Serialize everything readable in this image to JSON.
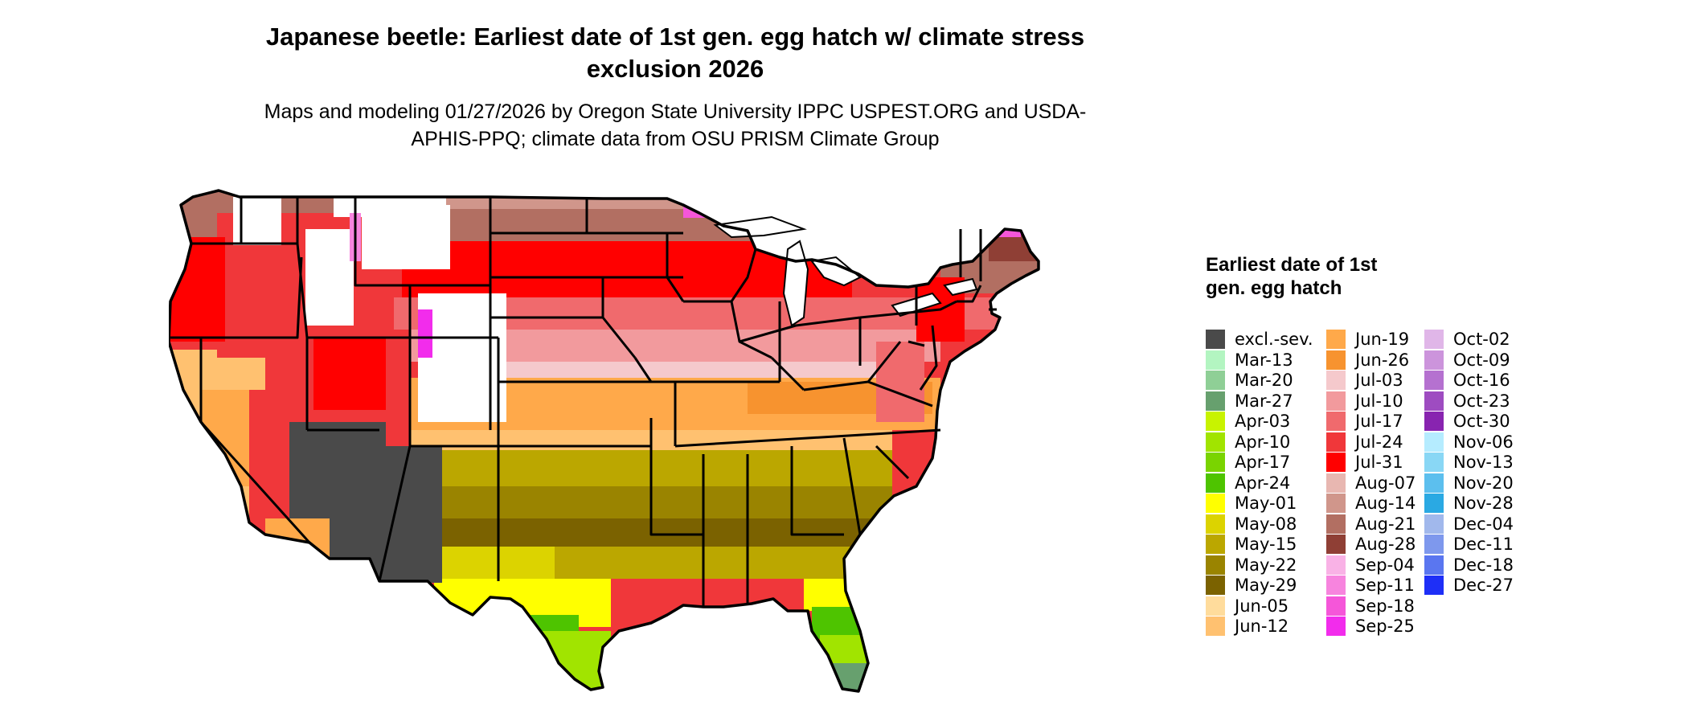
{
  "map": {
    "title": "Japanese beetle: Earliest date of 1st gen. egg hatch w/ climate stress exclusion 2026",
    "subtitle": "Maps and modeling 01/27/2026 by Oregon State University IPPC USPEST.ORG and USDA-APHIS-PPQ; climate data from OSU PRISM Climate Group",
    "region": "Contiguous United States",
    "legend_title": "Earliest date of 1st gen. egg hatch",
    "legend": [
      {
        "label": "excl.-sev.",
        "color": "#4a4a4a"
      },
      {
        "label": "Mar-13",
        "color": "#b3f5c1"
      },
      {
        "label": "Mar-20",
        "color": "#8fcf96"
      },
      {
        "label": "Mar-27",
        "color": "#67a06e"
      },
      {
        "label": "Apr-03",
        "color": "#c8f300"
      },
      {
        "label": "Apr-10",
        "color": "#a1e400"
      },
      {
        "label": "Apr-17",
        "color": "#7ad400"
      },
      {
        "label": "Apr-24",
        "color": "#4ec400"
      },
      {
        "label": "May-01",
        "color": "#ffff00"
      },
      {
        "label": "May-08",
        "color": "#dcd300"
      },
      {
        "label": "May-15",
        "color": "#bba700"
      },
      {
        "label": "May-22",
        "color": "#9a8400"
      },
      {
        "label": "May-29",
        "color": "#7b6200"
      },
      {
        "label": "Jun-05",
        "color": "#ffdc9c"
      },
      {
        "label": "Jun-12",
        "color": "#ffc170"
      },
      {
        "label": "Jun-19",
        "color": "#ffa94a"
      },
      {
        "label": "Jun-26",
        "color": "#f7932f"
      },
      {
        "label": "Jul-03",
        "color": "#f5c9cc"
      },
      {
        "label": "Jul-10",
        "color": "#f29a9d"
      },
      {
        "label": "Jul-17",
        "color": "#f06a6d"
      },
      {
        "label": "Jul-24",
        "color": "#f0373a"
      },
      {
        "label": "Jul-31",
        "color": "#ff0000"
      },
      {
        "label": "Aug-07",
        "color": "#e8b7b1"
      },
      {
        "label": "Aug-14",
        "color": "#d0968b"
      },
      {
        "label": "Aug-21",
        "color": "#b26f62"
      },
      {
        "label": "Aug-28",
        "color": "#8f3f35"
      },
      {
        "label": "Sep-04",
        "color": "#f9b2e6"
      },
      {
        "label": "Sep-11",
        "color": "#f784de"
      },
      {
        "label": "Sep-18",
        "color": "#f556d9"
      },
      {
        "label": "Sep-25",
        "color": "#f22cec"
      },
      {
        "label": "Oct-02",
        "color": "#e0b6e8"
      },
      {
        "label": "Oct-09",
        "color": "#cc94dc"
      },
      {
        "label": "Oct-16",
        "color": "#b571d0"
      },
      {
        "label": "Oct-23",
        "color": "#9e4cc1"
      },
      {
        "label": "Oct-30",
        "color": "#8824b0"
      },
      {
        "label": "Nov-06",
        "color": "#b5ecff"
      },
      {
        "label": "Nov-13",
        "color": "#89d7f5"
      },
      {
        "label": "Nov-20",
        "color": "#5cbfee"
      },
      {
        "label": "Nov-28",
        "color": "#2aa9e3"
      },
      {
        "label": "Dec-04",
        "color": "#a1b8ec"
      },
      {
        "label": "Dec-11",
        "color": "#7e98ed"
      },
      {
        "label": "Dec-18",
        "color": "#5a76f0"
      },
      {
        "label": "Dec-27",
        "color": "#1e2ff7"
      }
    ]
  }
}
